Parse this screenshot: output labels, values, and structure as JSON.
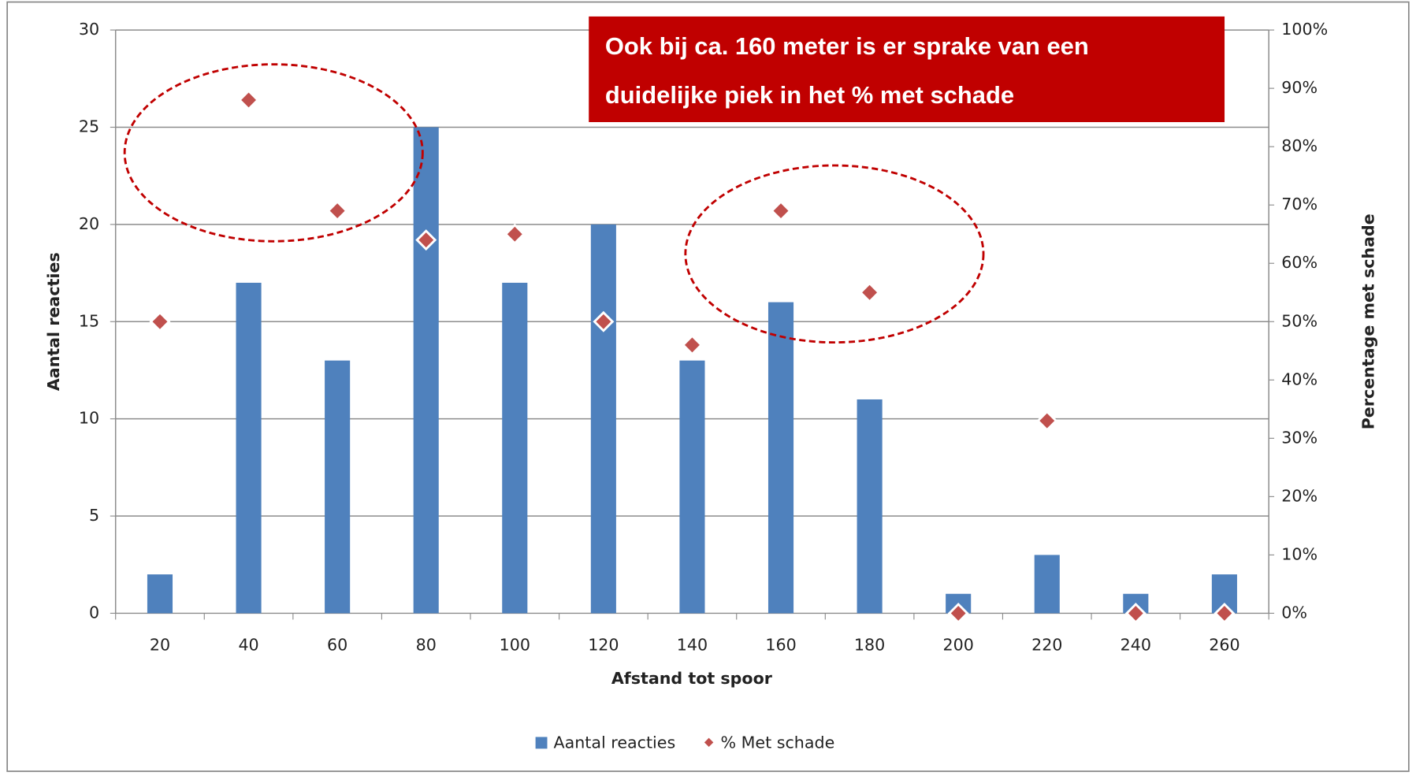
{
  "chart_data": {
    "type": "bar",
    "x_label": "Afstand tot spoor",
    "y_label": "Aantal reacties",
    "y2_label": "Percentage met schade",
    "annotation": [
      "Ook bij  ca. 160 meter is er sprake van een",
      "duidelijke piek in het % met  schade"
    ],
    "categories": [
      "20",
      "40",
      "60",
      "80",
      "100",
      "120",
      "140",
      "160",
      "180",
      "200",
      "220",
      "240",
      "260"
    ],
    "series": [
      {
        "name": "Aantal reacties",
        "type": "bar",
        "color": "#4f81bd",
        "values": [
          2,
          17,
          13,
          25,
          17,
          20,
          13,
          16,
          11,
          1,
          3,
          1,
          2
        ]
      },
      {
        "name": "% Met schade",
        "type": "scatter",
        "axis": "y2",
        "color": "#c0504d",
        "values": [
          50,
          88,
          69,
          64,
          65,
          50,
          46,
          69,
          55,
          0,
          33,
          0,
          0
        ]
      }
    ],
    "ylim": [
      0,
      30
    ],
    "yticks": [
      0,
      5,
      10,
      15,
      20,
      25,
      30
    ],
    "y2lim": [
      0,
      100
    ],
    "y2ticks": [
      {
        "value": 0,
        "label": "0%"
      },
      {
        "value": 10,
        "label": "10%"
      },
      {
        "value": 20,
        "label": "20%"
      },
      {
        "value": 30,
        "label": "30%"
      },
      {
        "value": 40,
        "label": "40%"
      },
      {
        "value": 50,
        "label": "50%"
      },
      {
        "value": 60,
        "label": "60%"
      },
      {
        "value": 70,
        "label": "70%"
      },
      {
        "value": 80,
        "label": "80%"
      },
      {
        "value": 90,
        "label": "90%"
      },
      {
        "value": 100,
        "label": "100%"
      }
    ],
    "grid": true,
    "legend": "bottom"
  }
}
